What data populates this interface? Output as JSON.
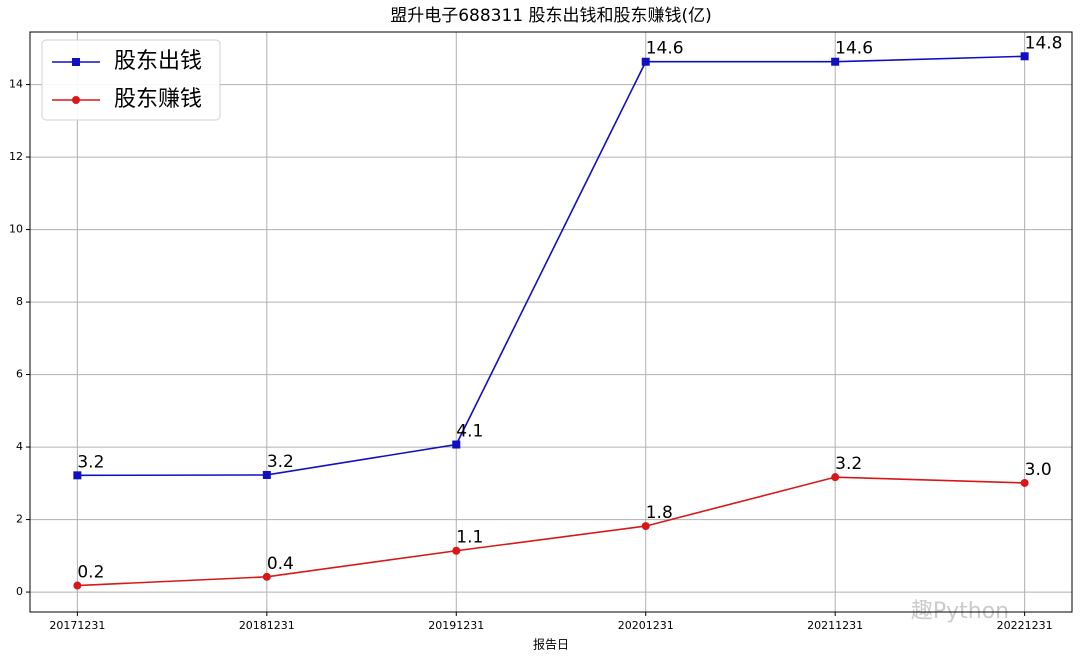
{
  "chart_data": {
    "type": "line",
    "title": "盟升电子688311 股东出钱和股东赚钱(亿)",
    "x_label": "报告日",
    "categories": [
      "20171231",
      "20181231",
      "20191231",
      "20201231",
      "20211231",
      "20221231"
    ],
    "series": [
      {
        "name": "股东出钱",
        "color": "#1010c0",
        "marker": "square",
        "values": [
          3.22,
          3.23,
          4.07,
          14.63,
          14.63,
          14.78
        ],
        "value_labels": [
          "3.2",
          "3.2",
          "4.1",
          "14.6",
          "14.6",
          "14.8"
        ]
      },
      {
        "name": "股东赚钱",
        "color": "#d81818",
        "marker": "circle",
        "values": [
          0.18,
          0.42,
          1.14,
          1.82,
          3.17,
          3.01
        ],
        "value_labels": [
          "0.2",
          "0.4",
          "1.1",
          "1.8",
          "3.2",
          "3.0"
        ]
      }
    ],
    "ylim": [
      -0.55,
      15.45
    ],
    "yticks": [
      0,
      2,
      4,
      6,
      8,
      10,
      12,
      14
    ],
    "grid": true,
    "legend": "upper left",
    "watermark": "趣Python"
  }
}
